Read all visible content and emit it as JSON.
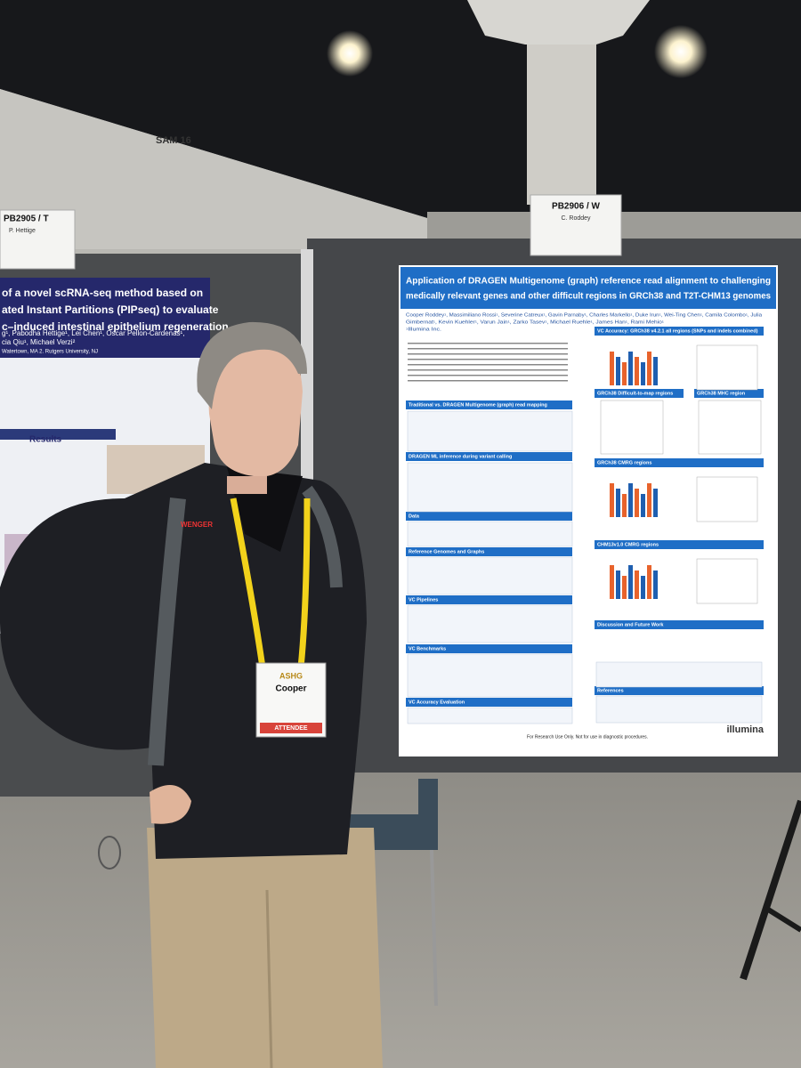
{
  "venue": {
    "section_sign": "SAM 16"
  },
  "signs": [
    {
      "board": "PB2905 / T",
      "presenter": "P. Hettige"
    },
    {
      "board": "PB2906 / W",
      "presenter": "C. Roddey"
    }
  ],
  "left_poster": {
    "title_lines": [
      "of a novel scRNA-seq method based on",
      "ated Instant Partitions (PIPseq) to evaluate",
      "c–induced intestinal epithelium regeneration"
    ],
    "authors_lines": [
      "g¹, Pabodha Hettige¹, Lei Chen¹, Oscar Pellon-Cardenas¹,",
      "cia Qiu¹, Michael Verzi²",
      "Watertown, MA  2. Rutgers University, NJ"
    ],
    "results_heading": "Results"
  },
  "poster": {
    "title_lines": [
      "Application of DRAGEN Multigenome (graph) reference read alignment to challenging",
      "medically relevant genes and other difficult regions in GRCh38 and T2T-CHM13 genomes"
    ],
    "authors_lines": [
      "Cooper Roddey¹, Massimiliano Rossi¹, Severine Catreux¹, Gavin Parnaby¹, Charles Markello¹, Duke Irun¹, Wei-Ting Chen¹, Camila Colombo¹, Julia",
      "Gimbernat¹, Kevin Kuehler¹, Varun Jain¹, Zarko Tasev¹, Michael Ruehle¹, James Han¹, Rami Mehio¹",
      "¹Illumina Inc."
    ],
    "sections": [
      "Traditional vs. DRAGEN Multigenome (graph) read mapping",
      "DRAGEN ML inference during variant calling",
      "Data",
      "Reference Genomes and Graphs",
      "VC Pipelines",
      "VC Benchmarks",
      "VC Accuracy Evaluation",
      "VC Accuracy: GRCh38 v4.2.1 all regions  (SNPs and indels combined)",
      "GRCh38 Difficult-to-map regions",
      "GRCh38 MHC region",
      "GRCh38 CMRG regions",
      "CHM13v1.0 CMRG regions",
      "Discussion and Future Work",
      "References"
    ],
    "footer": "For Research Use Only. Not for use in diagnostic procedures.",
    "logo": "illumina"
  },
  "badge": {
    "event": "ASHG",
    "name": "Cooper",
    "role": "ATTENDEE"
  },
  "backpack_brand": "WENGER"
}
